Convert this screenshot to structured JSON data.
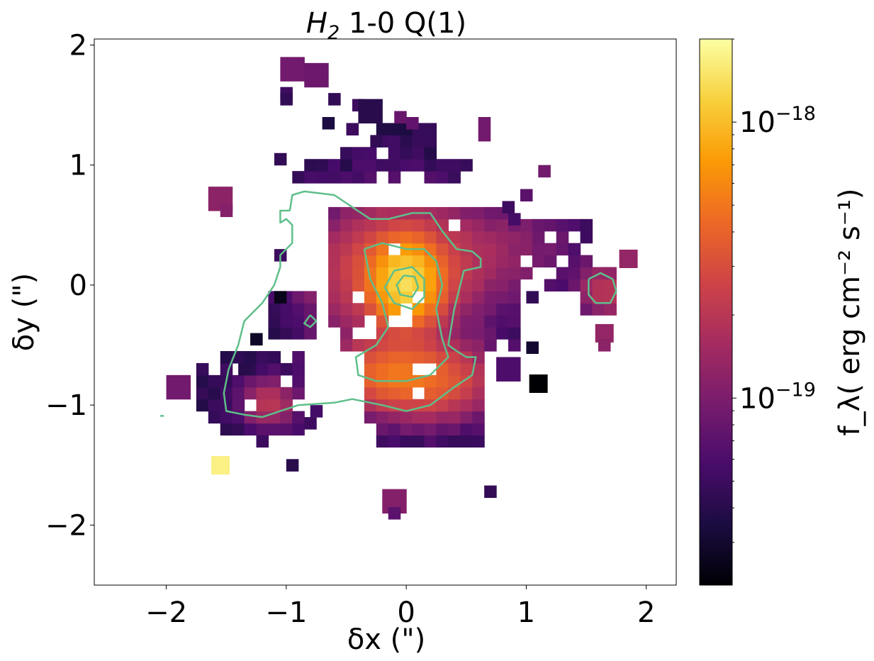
{
  "chart_data": {
    "type": "heatmap",
    "title": {
      "main": "H",
      "sub": "2",
      "rest": " 1-0 Q(1)"
    },
    "xlabel": "δx (\")",
    "ylabel": "δy (\")",
    "xlim": [
      -2.6,
      2.25
    ],
    "ylim": [
      -2.5,
      2.05
    ],
    "xticks": [
      -2,
      -1,
      0,
      1,
      2
    ],
    "yticks": [
      -2,
      -1,
      0,
      1,
      2
    ],
    "xtick_labels": [
      "−2",
      "−1",
      "0",
      "1",
      "2"
    ],
    "ytick_labels": [
      "−2",
      "−1",
      "0",
      "1",
      "2"
    ],
    "pixel_size": 0.1,
    "colorbar": {
      "label": "f_λ( erg cm⁻² s⁻¹)",
      "scale": "log",
      "range": [
        2.1e-20,
        2e-18
      ],
      "ticks": [
        {
          "value": 1e-18,
          "base": "10",
          "exp": "−18"
        },
        {
          "value": 1e-19,
          "base": "10",
          "exp": "−19"
        }
      ],
      "colormap": "inferno",
      "stops": [
        "#000004",
        "#1b0c41",
        "#4a0c6b",
        "#781c6d",
        "#a52c60",
        "#cf4446",
        "#ed6925",
        "#fb9b06",
        "#f7d13d",
        "#fcffa4"
      ]
    },
    "contour_color": "#5fbf8a",
    "sources": [
      {
        "x": 0.0,
        "y": 0.02,
        "amp": 1.05e-18,
        "sx": 0.16,
        "sy": 0.2
      },
      {
        "x": -0.08,
        "y": 0.12,
        "amp": 3.2e-19,
        "sx": 0.42,
        "sy": 0.34
      },
      {
        "x": 0.15,
        "y": -0.8,
        "amp": 3.3e-19,
        "sx": 0.36,
        "sy": 0.2
      },
      {
        "x": -0.2,
        "y": -0.72,
        "amp": 2.2e-19,
        "sx": 0.3,
        "sy": 0.16
      },
      {
        "x": -1.15,
        "y": -0.98,
        "amp": 1.7e-19,
        "sx": 0.14,
        "sy": 0.12
      },
      {
        "x": 1.65,
        "y": -0.05,
        "amp": 1.6e-19,
        "sx": 0.14,
        "sy": 0.14
      },
      {
        "x": 0.8,
        "y": 0.3,
        "amp": 7e-20,
        "sx": 0.4,
        "sy": 0.25
      }
    ],
    "coverage_blocks": [
      [
        -0.7,
        0.8,
        -0.15,
        0.7
      ],
      [
        -0.5,
        0.9,
        -0.5,
        0.4
      ],
      [
        -0.65,
        -0.1,
        -0.35,
        0.7
      ],
      [
        -0.2,
        0.7,
        -1.35,
        -0.4
      ],
      [
        -0.35,
        0.55,
        -1.1,
        -0.5
      ],
      [
        -1.75,
        -1.0,
        -1.15,
        -0.65
      ],
      [
        -1.55,
        -0.9,
        -1.25,
        -0.6
      ],
      [
        0.3,
        1.2,
        0.1,
        0.55
      ],
      [
        0.6,
        1.5,
        0.1,
        0.6
      ],
      [
        1.2,
        1.55,
        0.0,
        0.45
      ],
      [
        -1.2,
        -0.75,
        -0.45,
        -0.1
      ],
      [
        -0.95,
        -0.55,
        0.85,
        1.0
      ],
      [
        -0.2,
        0.2,
        1.0,
        1.3
      ],
      [
        -0.5,
        -0.05,
        0.9,
        1.1
      ],
      [
        0.15,
        0.55,
        0.85,
        1.05
      ],
      [
        1.45,
        1.75,
        -0.2,
        0.1
      ]
    ],
    "extra_pixels": [
      {
        "x": -0.95,
        "y": 1.8,
        "v": 9e-20,
        "w": 0.2
      },
      {
        "x": -0.75,
        "y": 1.75,
        "v": 8.5e-20,
        "w": 0.2
      },
      {
        "x": -1.0,
        "y": 1.6,
        "v": 5e-20
      },
      {
        "x": -1.0,
        "y": 1.55,
        "v": 4.5e-20
      },
      {
        "x": -0.6,
        "y": 1.55,
        "v": 4.5e-20
      },
      {
        "x": -0.4,
        "y": 1.5,
        "v": 5e-20
      },
      {
        "x": -0.3,
        "y": 1.45,
        "v": 4e-20,
        "w": 0.2
      },
      {
        "x": -0.65,
        "y": 1.35,
        "v": 3.5e-20
      },
      {
        "x": -0.45,
        "y": 1.3,
        "v": 5e-20
      },
      {
        "x": -0.25,
        "y": 1.2,
        "v": 4.5e-20
      },
      {
        "x": -0.05,
        "y": 1.4,
        "v": 8e-20
      },
      {
        "x": 0.05,
        "y": 1.35,
        "v": 7.5e-20
      },
      {
        "x": 0.65,
        "y": 1.35,
        "v": 9e-20
      },
      {
        "x": 0.65,
        "y": 1.25,
        "v": 9e-20
      },
      {
        "x": -1.05,
        "y": 1.05,
        "v": 4.5e-20
      },
      {
        "x": 1.15,
        "y": 0.95,
        "v": 9e-20
      },
      {
        "x": 1.0,
        "y": 0.75,
        "v": 7e-20
      },
      {
        "x": 0.85,
        "y": 0.65,
        "v": 5e-20
      },
      {
        "x": 0.9,
        "y": 0.55,
        "v": 5.5e-20
      },
      {
        "x": -1.55,
        "y": 0.72,
        "v": 1.2e-19,
        "w": 0.2
      },
      {
        "x": -1.5,
        "y": 0.62,
        "v": 1.1e-19
      },
      {
        "x": -1.05,
        "y": 0.25,
        "v": 5e-20
      },
      {
        "x": -1.05,
        "y": -0.1,
        "v": 2.5e-20
      },
      {
        "x": -1.25,
        "y": -0.45,
        "v": 2.8e-20
      },
      {
        "x": -1.35,
        "y": -0.7,
        "v": 4e-20
      },
      {
        "x": -1.9,
        "y": -0.85,
        "v": 9e-20,
        "w": 0.2
      },
      {
        "x": -1.55,
        "y": -1.5,
        "v": 1.7e-18,
        "w": 0.15
      },
      {
        "x": -1.2,
        "y": -1.3,
        "v": 5e-20
      },
      {
        "x": -0.95,
        "y": -1.5,
        "v": 4e-20
      },
      {
        "x": -0.8,
        "y": -1.15,
        "v": 5e-20
      },
      {
        "x": -0.75,
        "y": -1.05,
        "v": 5.5e-20
      },
      {
        "x": 0.85,
        "y": -0.7,
        "v": 6e-20,
        "w": 0.2
      },
      {
        "x": 1.05,
        "y": -0.52,
        "v": 3e-20
      },
      {
        "x": 1.1,
        "y": -0.82,
        "v": 2.05e-20,
        "w": 0.15
      },
      {
        "x": 1.05,
        "y": -0.1,
        "v": 4.5e-20
      },
      {
        "x": 1.85,
        "y": 0.22,
        "v": 1.3e-19,
        "w": 0.15
      },
      {
        "x": 1.65,
        "y": -0.4,
        "v": 1.3e-19,
        "w": 0.15
      },
      {
        "x": 1.65,
        "y": -0.5,
        "v": 1.2e-19
      },
      {
        "x": 0.7,
        "y": -1.72,
        "v": 4.5e-20
      },
      {
        "x": -0.1,
        "y": -1.8,
        "v": 1.1e-19,
        "w": 0.2
      },
      {
        "x": -0.1,
        "y": -1.9,
        "v": 7e-20
      }
    ],
    "contours": [
      [
        [
          -0.97,
          0.62
        ],
        [
          -0.95,
          0.75
        ],
        [
          -0.85,
          0.78
        ],
        [
          -0.6,
          0.75
        ],
        [
          -0.45,
          0.65
        ],
        [
          -0.3,
          0.55
        ],
        [
          -0.15,
          0.55
        ],
        [
          0.05,
          0.6
        ],
        [
          0.2,
          0.6
        ],
        [
          0.3,
          0.45
        ],
        [
          0.42,
          0.3
        ],
        [
          0.55,
          0.28
        ],
        [
          0.62,
          0.22
        ],
        [
          0.62,
          0.15
        ],
        [
          0.48,
          0.12
        ],
        [
          0.4,
          -0.2
        ],
        [
          0.35,
          -0.5
        ],
        [
          0.42,
          -0.55
        ],
        [
          0.5,
          -0.6
        ],
        [
          0.58,
          -0.6
        ],
        [
          0.55,
          -0.75
        ],
        [
          0.4,
          -0.85
        ],
        [
          0.2,
          -1.0
        ],
        [
          0.0,
          -1.05
        ],
        [
          -0.2,
          -1.0
        ],
        [
          -0.45,
          -0.95
        ],
        [
          -0.6,
          -0.98
        ],
        [
          -0.9,
          -1.0
        ],
        [
          -1.05,
          -1.05
        ],
        [
          -1.2,
          -1.1
        ],
        [
          -1.35,
          -1.08
        ],
        [
          -1.5,
          -1.05
        ],
        [
          -1.52,
          -0.9
        ],
        [
          -1.48,
          -0.7
        ],
        [
          -1.4,
          -0.5
        ],
        [
          -1.35,
          -0.3
        ],
        [
          -1.2,
          -0.15
        ],
        [
          -1.1,
          0.0
        ],
        [
          -1.05,
          0.15
        ],
        [
          -1.05,
          0.25
        ],
        [
          -0.95,
          0.35
        ],
        [
          -0.95,
          0.5
        ],
        [
          -1.0,
          0.55
        ],
        [
          -1.05,
          0.52
        ],
        [
          -1.05,
          0.62
        ],
        [
          -0.97,
          0.62
        ]
      ],
      [
        [
          -0.35,
          0.3
        ],
        [
          -0.2,
          0.35
        ],
        [
          0.0,
          0.3
        ],
        [
          0.15,
          0.3
        ],
        [
          0.25,
          0.2
        ],
        [
          0.3,
          0.0
        ],
        [
          0.25,
          -0.2
        ],
        [
          0.3,
          -0.45
        ],
        [
          0.35,
          -0.6
        ],
        [
          0.2,
          -0.75
        ],
        [
          0.0,
          -0.8
        ],
        [
          -0.25,
          -0.8
        ],
        [
          -0.4,
          -0.75
        ],
        [
          -0.42,
          -0.6
        ],
        [
          -0.25,
          -0.5
        ],
        [
          -0.15,
          -0.35
        ],
        [
          -0.2,
          -0.15
        ],
        [
          -0.3,
          0.05
        ],
        [
          -0.35,
          0.3
        ]
      ],
      [
        [
          -0.1,
          0.12
        ],
        [
          0.05,
          0.15
        ],
        [
          0.15,
          0.05
        ],
        [
          0.15,
          -0.1
        ],
        [
          0.05,
          -0.2
        ],
        [
          -0.1,
          -0.15
        ],
        [
          -0.18,
          -0.02
        ],
        [
          -0.1,
          0.12
        ]
      ],
      [
        [
          -0.02,
          0.08
        ],
        [
          0.07,
          0.07
        ],
        [
          0.1,
          -0.02
        ],
        [
          0.05,
          -0.1
        ],
        [
          -0.05,
          -0.08
        ],
        [
          -0.08,
          0.0
        ],
        [
          -0.02,
          0.08
        ]
      ],
      [
        [
          1.52,
          0.05
        ],
        [
          1.62,
          0.1
        ],
        [
          1.72,
          0.05
        ],
        [
          1.75,
          -0.05
        ],
        [
          1.7,
          -0.15
        ],
        [
          1.58,
          -0.15
        ],
        [
          1.52,
          -0.08
        ],
        [
          1.52,
          0.05
        ]
      ],
      [
        [
          -0.8,
          -0.25
        ],
        [
          -0.75,
          -0.3
        ],
        [
          -0.8,
          -0.35
        ],
        [
          -0.85,
          -0.32
        ],
        [
          -0.8,
          -0.25
        ]
      ],
      [
        [
          -2.05,
          -1.09
        ],
        [
          -2.02,
          -1.09
        ]
      ]
    ]
  }
}
